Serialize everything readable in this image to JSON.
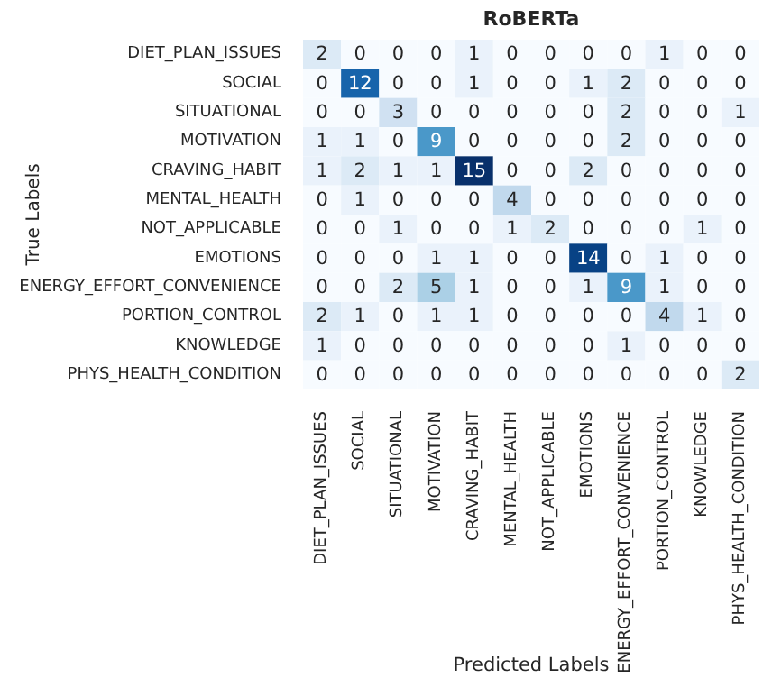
{
  "chart_data": {
    "type": "heatmap",
    "title": "RoBERTa",
    "xlabel": "Predicted Labels",
    "ylabel": "True Labels",
    "categories": [
      "DIET_PLAN_ISSUES",
      "SOCIAL",
      "SITUATIONAL",
      "MOTIVATION",
      "CRAVING_HABIT",
      "MENTAL_HEALTH",
      "NOT_APPLICABLE",
      "EMOTIONS",
      "ENERGY_EFFORT_CONVENIENCE",
      "PORTION_CONTROL",
      "KNOWLEDGE",
      "PHYS_HEALTH_CONDITION"
    ],
    "y_categories": [
      "DIET_PLAN_ISSUES",
      "SOCIAL",
      "SITUATIONAL",
      "MOTIVATION",
      "CRAVING_HABIT",
      "MENTAL_HEALTH",
      "NOT_APPLICABLE",
      "EMOTIONS",
      "ENERGY_EFFORT_CONVENIENCE",
      "PORTION_CONTROL",
      "KNOWLEDGE",
      "PHYS_HEALTH_CONDITION"
    ],
    "cells": [
      [
        2,
        0,
        0,
        0,
        1,
        0,
        0,
        0,
        0,
        1,
        0,
        0
      ],
      [
        0,
        12,
        0,
        0,
        1,
        0,
        0,
        1,
        2,
        0,
        0,
        0
      ],
      [
        0,
        0,
        3,
        0,
        0,
        0,
        0,
        0,
        2,
        0,
        0,
        1
      ],
      [
        1,
        1,
        0,
        9,
        0,
        0,
        0,
        0,
        2,
        0,
        0,
        0
      ],
      [
        1,
        2,
        1,
        1,
        15,
        0,
        0,
        2,
        0,
        0,
        0,
        0
      ],
      [
        0,
        1,
        0,
        0,
        0,
        4,
        0,
        0,
        0,
        0,
        0,
        0
      ],
      [
        0,
        0,
        1,
        0,
        0,
        1,
        2,
        0,
        0,
        0,
        1,
        0
      ],
      [
        0,
        0,
        0,
        1,
        1,
        0,
        0,
        14,
        0,
        1,
        0,
        0
      ],
      [
        0,
        0,
        2,
        5,
        1,
        0,
        0,
        1,
        9,
        1,
        0,
        0
      ],
      [
        2,
        1,
        0,
        1,
        1,
        0,
        0,
        0,
        0,
        4,
        1,
        0
      ],
      [
        1,
        0,
        0,
        0,
        0,
        0,
        0,
        0,
        1,
        0,
        0,
        0
      ],
      [
        0,
        0,
        0,
        0,
        0,
        0,
        0,
        0,
        0,
        0,
        0,
        2
      ]
    ],
    "data_labels": true
  }
}
